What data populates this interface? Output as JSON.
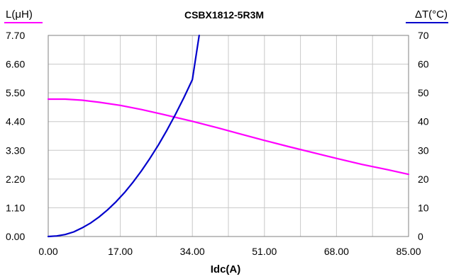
{
  "chart_data": {
    "type": "line",
    "title": "CSBX1812-5R3M",
    "xlabel": "Idc(A)",
    "ylabel_left": "L(μH)",
    "ylabel_right": "ΔT(°C)",
    "xlim": [
      0,
      85
    ],
    "ylim_left": [
      0,
      7.7
    ],
    "ylim_right": [
      0,
      70
    ],
    "grid": true,
    "x_ticks": [
      0,
      8.5,
      17,
      25.5,
      34,
      42.5,
      51,
      59.5,
      68,
      76.5,
      85
    ],
    "x_tick_labels": [
      "0.00",
      "17.00",
      "34.00",
      "51.00",
      "68.00",
      "85.00"
    ],
    "y_left_ticks": [
      0,
      1.1,
      2.2,
      3.3,
      4.4,
      5.5,
      6.6,
      7.7
    ],
    "y_left_tick_labels": [
      "0.00",
      "1.10",
      "2.20",
      "3.30",
      "4.40",
      "5.50",
      "6.60",
      "7.70"
    ],
    "y_right_ticks": [
      0,
      10,
      20,
      30,
      40,
      50,
      60,
      70
    ],
    "y_right_tick_labels": [
      "0",
      "10",
      "20",
      "30",
      "40",
      "50",
      "60",
      "70"
    ],
    "series": [
      {
        "axis": "left",
        "color": "#ff00ff",
        "x": [
          0,
          4,
          8,
          12,
          17,
          22,
          27,
          34,
          40,
          45,
          51,
          57,
          63,
          68,
          74,
          80,
          85
        ],
        "y": [
          5.26,
          5.26,
          5.22,
          5.14,
          5.02,
          4.86,
          4.68,
          4.41,
          4.16,
          3.94,
          3.68,
          3.43,
          3.19,
          2.99,
          2.76,
          2.56,
          2.38
        ]
      },
      {
        "axis": "right",
        "color": "#0000cc",
        "x": [
          0,
          2,
          4,
          6,
          8,
          10,
          12,
          14,
          16,
          18,
          20,
          22,
          24,
          26,
          28,
          30,
          32,
          34,
          35.6
        ],
        "y": [
          0,
          0.2,
          0.7,
          1.6,
          3.0,
          4.7,
          6.8,
          9.3,
          12.1,
          15.3,
          18.9,
          22.9,
          27.2,
          31.9,
          37.0,
          42.5,
          48.3,
          54.6,
          70
        ]
      }
    ]
  }
}
